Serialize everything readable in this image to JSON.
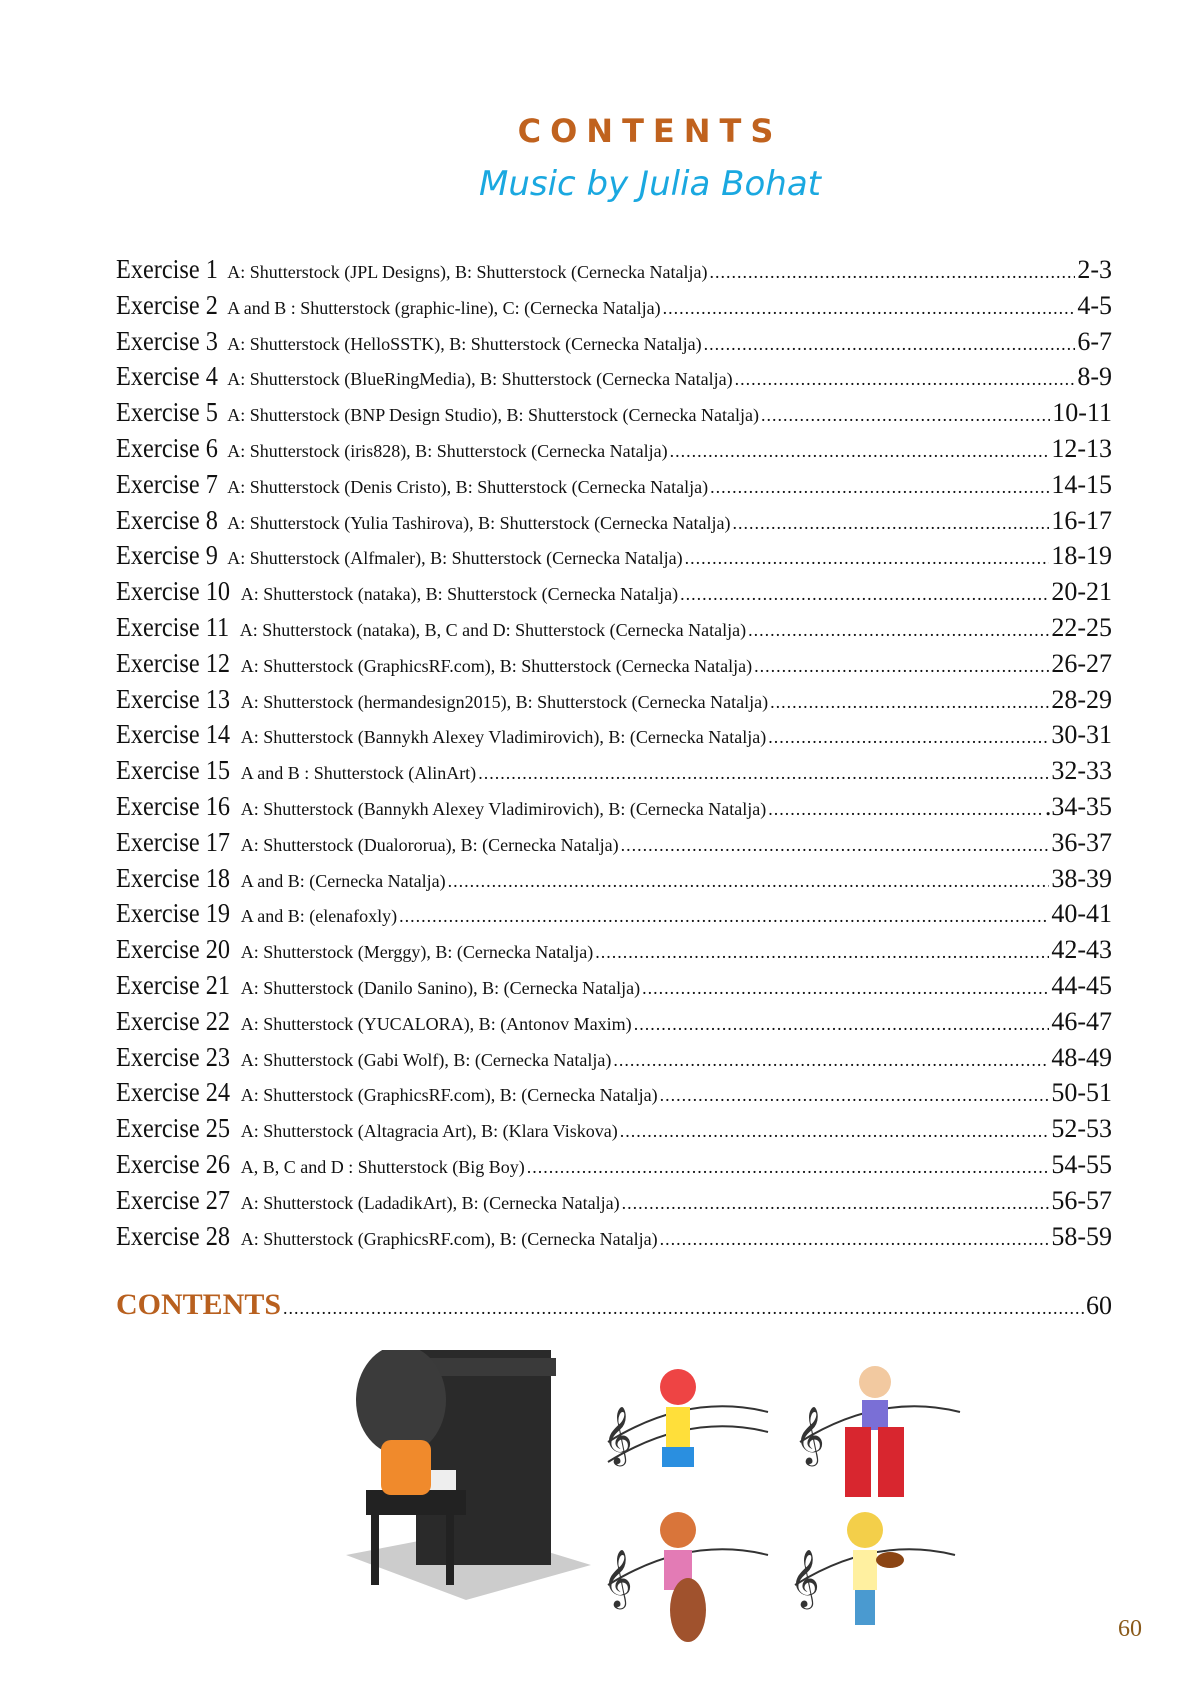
{
  "header": {
    "title": "CONTENTS",
    "subtitle": "Music by Julia Bohat"
  },
  "entries": [
    {
      "label": "Exercise 1",
      "credit": "A: Shutterstock (JPL Designs), B: Shutterstock (Cernecka Natalja)",
      "pages": "2-3"
    },
    {
      "label": "Exercise 2",
      "credit": "A and B : Shutterstock (graphic-line), C: (Cernecka Natalja)",
      "pages": "4-5"
    },
    {
      "label": "Exercise 3",
      "credit": "A: Shutterstock (HelloSSTK), B: Shutterstock (Cernecka Natalja)",
      "pages": "6-7"
    },
    {
      "label": "Exercise 4",
      "credit": "A: Shutterstock (BlueRingMedia), B: Shutterstock (Cernecka Natalja)",
      "pages": "8-9"
    },
    {
      "label": "Exercise 5",
      "credit": "A: Shutterstock (BNP Design Studio), B: Shutterstock (Cernecka Natalja)",
      "pages": "10-11"
    },
    {
      "label": "Exercise 6",
      "credit": "A: Shutterstock (iris828), B: Shutterstock (Cernecka Natalja)",
      "pages": "12-13"
    },
    {
      "label": "Exercise 7",
      "credit": "A: Shutterstock (Denis Cristo), B: Shutterstock (Cernecka Natalja)",
      "pages": "14-15"
    },
    {
      "label": "Exercise 8",
      "credit": "A: Shutterstock (Yulia Tashirova), B: Shutterstock (Cernecka Natalja)",
      "pages": "16-17"
    },
    {
      "label": "Exercise 9",
      "credit": "A: Shutterstock (Alfmaler), B: Shutterstock (Cernecka Natalja)",
      "pages": "18-19"
    },
    {
      "label": "Exercise 10",
      "credit": "A: Shutterstock (nataka), B: Shutterstock (Cernecka Natalja)",
      "pages": "20-21"
    },
    {
      "label": "Exercise 11",
      "credit": "A: Shutterstock (nataka), B, C and D: Shutterstock (Cernecka Natalja)",
      "pages": "22-25"
    },
    {
      "label": "Exercise 12",
      "credit": "A: Shutterstock (GraphicsRF.com), B: Shutterstock (Cernecka Natalja)",
      "pages": "26-27"
    },
    {
      "label": "Exercise 13",
      "credit": "A: Shutterstock (hermandesign2015), B: Shutterstock (Cernecka Natalja)",
      "pages": "28-29"
    },
    {
      "label": "Exercise 14",
      "credit": "A: Shutterstock (Bannykh Alexey Vladimirovich), B: (Cernecka Natalja)",
      "pages": "30-31"
    },
    {
      "label": "Exercise 15",
      "credit": "A and B : Shutterstock (AlinArt)",
      "pages": "32-33"
    },
    {
      "label": "Exercise 16",
      "credit": "A: Shutterstock (Bannykh Alexey Vladimirovich), B: (Cernecka Natalja)",
      "pages": ".34-35"
    },
    {
      "label": "Exercise 17",
      "credit": "A: Shutterstock (Dualororua), B: (Cernecka Natalja)",
      "pages": "36-37"
    },
    {
      "label": "Exercise 18",
      "credit": "A and B: (Cernecka Natalja)",
      "pages": "38-39"
    },
    {
      "label": "Exercise 19",
      "credit": "A and B: (elenafoxly)",
      "pages": "40-41"
    },
    {
      "label": "Exercise 20",
      "credit": "A: Shutterstock (Merggy), B: (Cernecka Natalja)",
      "pages": "42-43"
    },
    {
      "label": "Exercise 21",
      "credit": "A: Shutterstock (Danilo Sanino), B: (Cernecka Natalja)",
      "pages": "44-45"
    },
    {
      "label": "Exercise 22",
      "credit": "A: Shutterstock (YUCALORA), B: (Antonov Maxim)",
      "pages": "46-47"
    },
    {
      "label": "Exercise 23",
      "credit": "A: Shutterstock (Gabi Wolf), B: (Cernecka Natalja)",
      "pages": "48-49"
    },
    {
      "label": "Exercise 24",
      "credit": "A: Shutterstock (GraphicsRF.com), B: (Cernecka Natalja)",
      "pages": "50-51"
    },
    {
      "label": "Exercise 25",
      "credit": "A: Shutterstock (Altagracia Art), B: (Klara Viskova)",
      "pages": "52-53"
    },
    {
      "label": "Exercise 26",
      "credit": "A, B, C and D : Shutterstock (Big Boy)",
      "pages": "54-55"
    },
    {
      "label": "Exercise 27",
      "credit": "A: Shutterstock (LadadikArt), B: (Cernecka Natalja)",
      "pages": "56-57"
    },
    {
      "label": "Exercise 28",
      "credit": "A: Shutterstock (GraphicsRF.com), B: (Cernecka Natalja)",
      "pages": "58-59"
    }
  ],
  "contents_entry": {
    "label": "CONTENTS",
    "pages": "60"
  },
  "footer": {
    "page_number": "60"
  },
  "colors": {
    "title": "#c0621e",
    "subtitle": "#1aa8e0"
  }
}
